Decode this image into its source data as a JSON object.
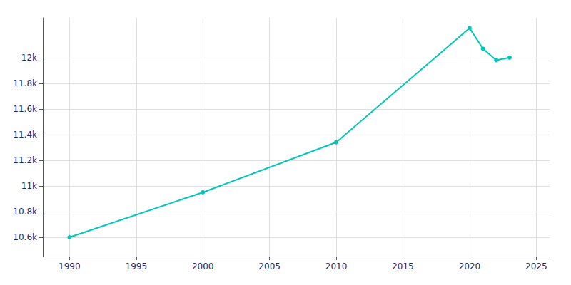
{
  "chart_data": {
    "type": "line",
    "x": [
      1990,
      2000,
      2010,
      2020,
      2021,
      2022,
      2023
    ],
    "values": [
      10600,
      10950,
      11340,
      12230,
      12070,
      11980,
      12000
    ],
    "color": "#00C5B8",
    "marker": "circle",
    "xlim": [
      1988,
      2026
    ],
    "xticks": [
      1990,
      1995,
      2000,
      2005,
      2010,
      2015,
      2020,
      2025
    ],
    "ylim": [
      10450,
      12310
    ],
    "yticks": [
      {
        "value": 10600,
        "label": "10.6k"
      },
      {
        "value": 10800,
        "label": "10.8k"
      },
      {
        "value": 11000,
        "label": "11k"
      },
      {
        "value": 11200,
        "label": "11.2k"
      },
      {
        "value": 11400,
        "label": "11.4k"
      },
      {
        "value": 11600,
        "label": "11.6k"
      },
      {
        "value": 11800,
        "label": "11.8k"
      },
      {
        "value": 12000,
        "label": "12k"
      }
    ],
    "grid": true
  }
}
